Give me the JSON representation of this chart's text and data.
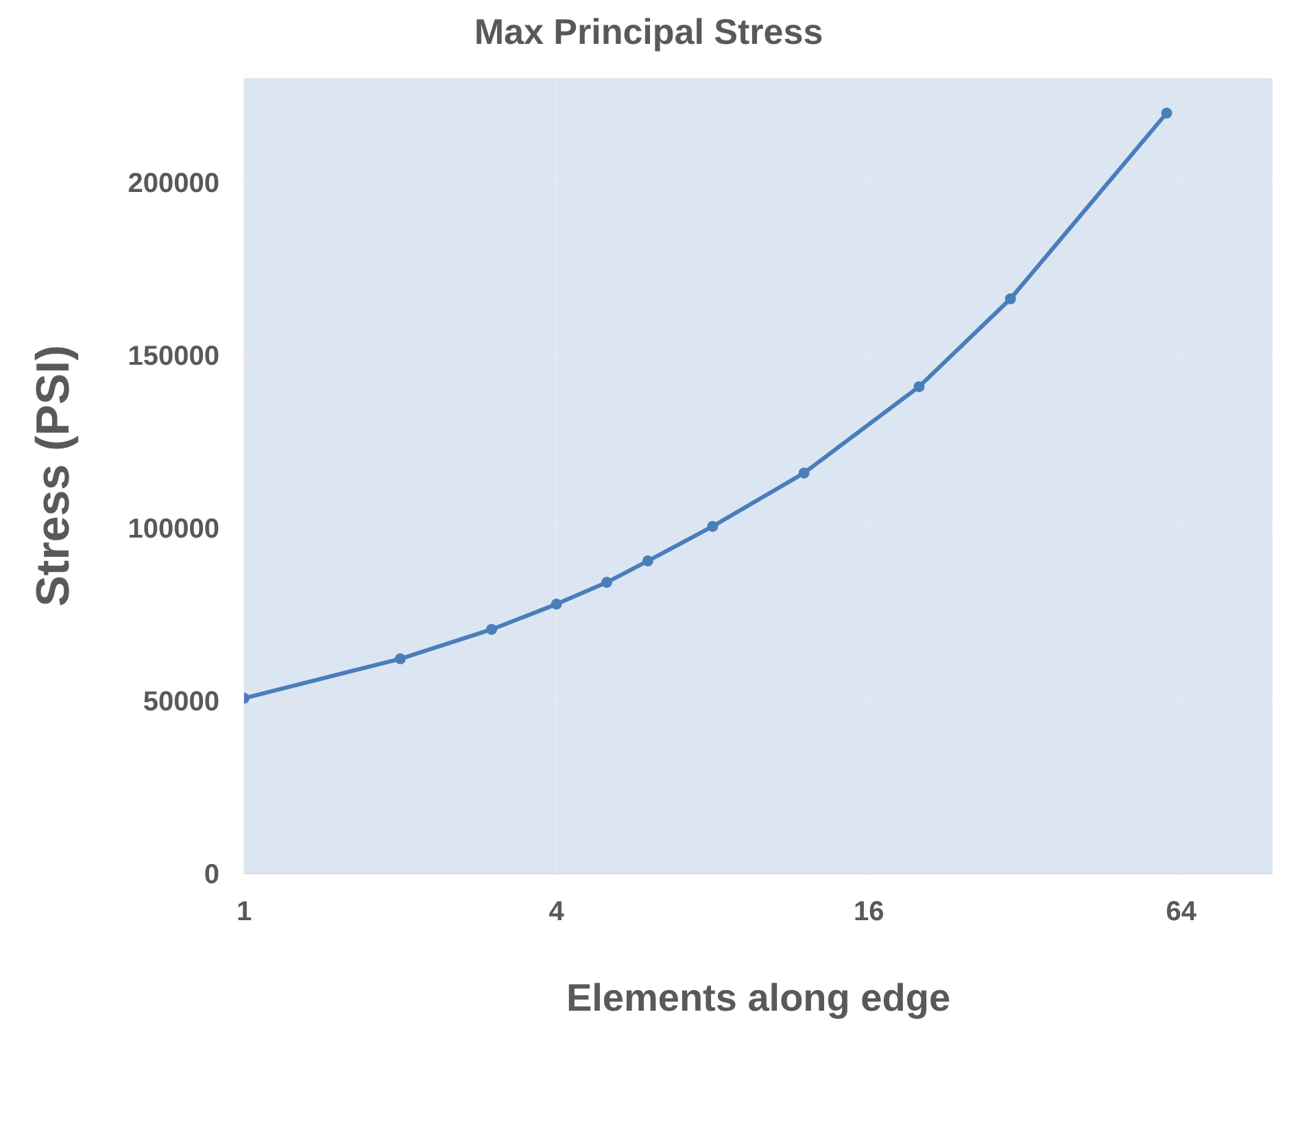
{
  "chart_data": {
    "type": "line",
    "title": "Max Principal Stress",
    "xlabel": "Elements along edge",
    "ylabel": "Stress (PSI)",
    "x": [
      1,
      2,
      3,
      4,
      5,
      6,
      8,
      12,
      20,
      30,
      60
    ],
    "series": [
      {
        "color": "#4a7ebb",
        "values": [
          50700,
          62100,
          70600,
          77900,
          84200,
          90400,
          100400,
          115800,
          140800,
          166200,
          219900
        ]
      }
    ],
    "log": "x",
    "xlim": [
      1,
      96
    ],
    "xticks": [
      1,
      4,
      16,
      64
    ],
    "ylim": [
      0,
      230000
    ],
    "yticks": [
      0,
      50000,
      100000,
      150000,
      200000
    ],
    "grid": true,
    "marker": "circle",
    "line_style": "solid",
    "legend": false
  }
}
